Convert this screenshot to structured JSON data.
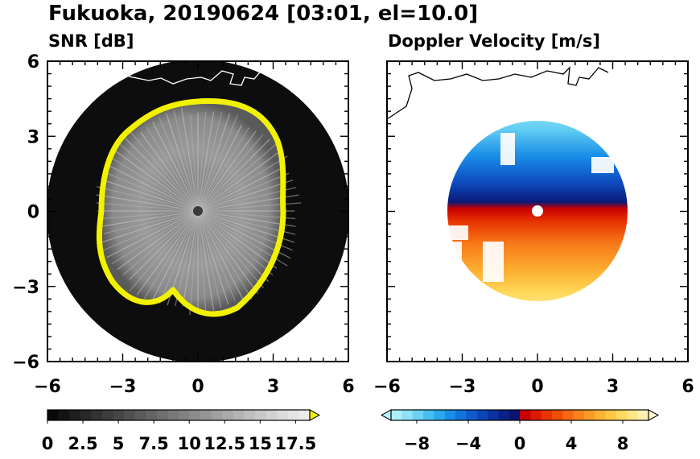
{
  "title": "Fukuoka, 20190624 [03:01, el=10.0]",
  "chart_data": [
    {
      "type": "heatmap",
      "panel": "left",
      "title": "SNR [dB]",
      "xlim": [
        -6,
        6
      ],
      "ylim": [
        -6,
        6
      ],
      "x_ticks": [
        "−6",
        "−3",
        "0",
        "3",
        "6"
      ],
      "y_ticks": [
        "6",
        "3",
        "0",
        "−3",
        "−6"
      ],
      "x_tick_values": [
        -6,
        -3,
        0,
        3,
        6
      ],
      "y_tick_values": [
        6,
        3,
        0,
        -3,
        -6
      ],
      "data_extent_radius": 5.9,
      "echo_edge_radius_approx": 3.5,
      "colorbar": {
        "ticks": [
          "0",
          "2.5",
          "5",
          "7.5",
          "10",
          "12.5",
          "15",
          "17.5"
        ],
        "tick_values": [
          0,
          2.5,
          5,
          7.5,
          10,
          12.5,
          15,
          17.5
        ],
        "range": [
          0,
          18.5
        ],
        "overflow_color": "#f2f200",
        "colors": [
          "#0a0a0a",
          "#141414",
          "#1e1e1e",
          "#282828",
          "#323232",
          "#3c3c3c",
          "#464646",
          "#505050",
          "#5a5a5a",
          "#646464",
          "#6e6e6e",
          "#787878",
          "#828282",
          "#8c8c8c",
          "#969696",
          "#a0a0a0",
          "#aaaaaa",
          "#b4b4b4",
          "#bebebe",
          "#c8c8c8",
          "#d2d2d2",
          "#dcdcdc",
          "#e4e4e4",
          "#ececec"
        ]
      }
    },
    {
      "type": "heatmap",
      "panel": "right",
      "title": "Doppler Velocity [m/s]",
      "xlim": [
        -6,
        6
      ],
      "ylim": [
        -6,
        6
      ],
      "x_ticks": [
        "−6",
        "−3",
        "0",
        "3",
        "6"
      ],
      "x_tick_values": [
        -6,
        -3,
        0,
        3,
        6
      ],
      "y_tick_values": [
        6,
        3,
        0,
        -3,
        -6
      ],
      "colorbar": {
        "ticks": [
          "−8",
          "−4",
          "0",
          "4",
          "8"
        ],
        "tick_values": [
          -8,
          -4,
          0,
          4,
          8
        ],
        "range": [
          -10,
          10
        ],
        "underflow_color": "#b8f4ff",
        "overflow_color": "#fffbd0",
        "colors": [
          "#aeeefa",
          "#8ee2f6",
          "#6ad2f2",
          "#46bff0",
          "#2aa8ee",
          "#1a8ee8",
          "#1274dc",
          "#0e5ccc",
          "#0a46b8",
          "#0a32a0",
          "#0a2288",
          "#0c1470",
          "#c80000",
          "#dc1a00",
          "#e83400",
          "#f04e08",
          "#f66814",
          "#fa821e",
          "#fc9c28",
          "#feb432",
          "#fec846",
          "#ffda60",
          "#ffe888",
          "#fff2b0"
        ]
      }
    }
  ]
}
